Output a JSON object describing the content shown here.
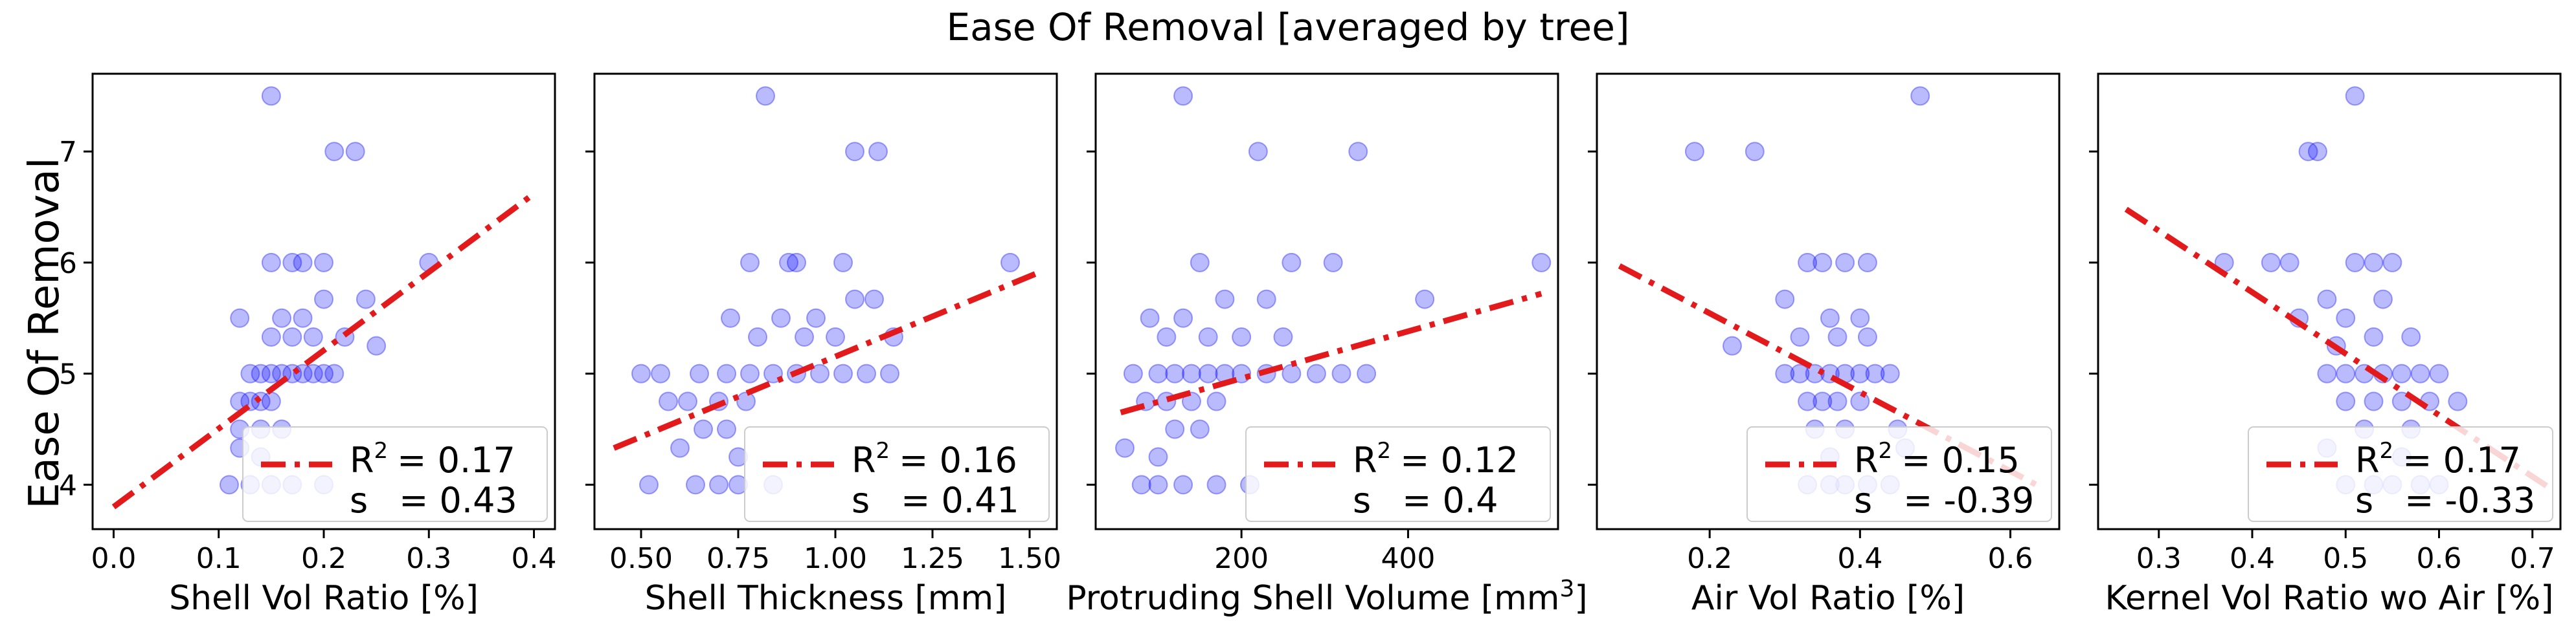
{
  "figure": {
    "suptitle": "Ease Of Removal [averaged by tree]",
    "ylabel": "Ease Of Removal",
    "colors": {
      "points": "#0000ff",
      "fit": "#e31a1c",
      "frame": "#000000"
    }
  },
  "chart_data": [
    {
      "type": "scatter",
      "xlabel": "Shell Vol Ratio [%]",
      "xlim": [
        -0.02,
        0.42
      ],
      "ylim": [
        3.6,
        7.7
      ],
      "xticks": [
        0.0,
        0.1,
        0.2,
        0.3,
        0.4
      ],
      "xtick_labels": [
        "0.0",
        "0.1",
        "0.2",
        "0.3",
        "0.4"
      ],
      "yticks": [
        4,
        5,
        6,
        7
      ],
      "ytick_labels": [
        "4",
        "5",
        "6",
        "7"
      ],
      "fit_line": {
        "x": [
          0.0,
          0.4
        ],
        "y": [
          3.8,
          6.62
        ]
      },
      "legend": {
        "placement": "lower-right",
        "r2_label": "R",
        "r2_value": "= 0.17",
        "s_label": "s",
        "s_value": "= 0.43"
      },
      "points": [
        [
          0.15,
          7.5
        ],
        [
          0.21,
          7.0
        ],
        [
          0.23,
          7.0
        ],
        [
          0.15,
          6.0
        ],
        [
          0.17,
          6.0
        ],
        [
          0.18,
          6.0
        ],
        [
          0.2,
          6.0
        ],
        [
          0.3,
          6.0
        ],
        [
          0.16,
          5.5
        ],
        [
          0.18,
          5.5
        ],
        [
          0.2,
          5.67
        ],
        [
          0.24,
          5.67
        ],
        [
          0.12,
          5.5
        ],
        [
          0.15,
          5.33
        ],
        [
          0.17,
          5.33
        ],
        [
          0.19,
          5.33
        ],
        [
          0.22,
          5.33
        ],
        [
          0.25,
          5.25
        ],
        [
          0.13,
          5.0
        ],
        [
          0.14,
          5.0
        ],
        [
          0.15,
          5.0
        ],
        [
          0.16,
          5.0
        ],
        [
          0.17,
          5.0
        ],
        [
          0.18,
          5.0
        ],
        [
          0.19,
          5.0
        ],
        [
          0.2,
          5.0
        ],
        [
          0.21,
          5.0
        ],
        [
          0.12,
          4.75
        ],
        [
          0.13,
          4.75
        ],
        [
          0.14,
          4.75
        ],
        [
          0.15,
          4.75
        ],
        [
          0.12,
          4.5
        ],
        [
          0.14,
          4.5
        ],
        [
          0.16,
          4.5
        ],
        [
          0.12,
          4.33
        ],
        [
          0.14,
          4.25
        ],
        [
          0.11,
          4.0
        ],
        [
          0.13,
          4.0
        ],
        [
          0.15,
          4.0
        ],
        [
          0.17,
          4.0
        ],
        [
          0.2,
          4.0
        ]
      ]
    },
    {
      "type": "scatter",
      "xlabel": "Shell Thickness [mm]",
      "xlim": [
        0.38,
        1.57
      ],
      "ylim": [
        3.6,
        7.7
      ],
      "xticks": [
        0.5,
        0.75,
        1.0,
        1.25,
        1.5
      ],
      "xtick_labels": [
        "0.50",
        "0.75",
        "1.00",
        "1.25",
        "1.50"
      ],
      "yticks": [
        4,
        5,
        6,
        7
      ],
      "ytick_labels": [
        "4",
        "5",
        "6",
        "7"
      ],
      "fit_line": {
        "x": [
          0.43,
          1.53
        ],
        "y": [
          4.33,
          5.92
        ]
      },
      "legend": {
        "placement": "lower-right",
        "r2_label": "R",
        "r2_value": "= 0.16",
        "s_label": "s",
        "s_value": "= 0.41"
      },
      "points": [
        [
          0.82,
          7.5
        ],
        [
          1.05,
          7.0
        ],
        [
          1.11,
          7.0
        ],
        [
          0.78,
          6.0
        ],
        [
          0.88,
          6.0
        ],
        [
          0.9,
          6.0
        ],
        [
          1.02,
          6.0
        ],
        [
          1.45,
          6.0
        ],
        [
          0.73,
          5.5
        ],
        [
          0.86,
          5.5
        ],
        [
          0.95,
          5.5
        ],
        [
          1.05,
          5.67
        ],
        [
          1.1,
          5.67
        ],
        [
          0.8,
          5.33
        ],
        [
          0.92,
          5.33
        ],
        [
          1.0,
          5.33
        ],
        [
          1.15,
          5.33
        ],
        [
          0.5,
          5.0
        ],
        [
          0.55,
          5.0
        ],
        [
          0.65,
          5.0
        ],
        [
          0.72,
          5.0
        ],
        [
          0.78,
          5.0
        ],
        [
          0.84,
          5.0
        ],
        [
          0.9,
          5.0
        ],
        [
          0.96,
          5.0
        ],
        [
          1.02,
          5.0
        ],
        [
          1.08,
          5.0
        ],
        [
          1.14,
          5.0
        ],
        [
          0.57,
          4.75
        ],
        [
          0.62,
          4.75
        ],
        [
          0.7,
          4.75
        ],
        [
          0.77,
          4.75
        ],
        [
          0.66,
          4.5
        ],
        [
          0.72,
          4.5
        ],
        [
          0.6,
          4.33
        ],
        [
          0.75,
          4.25
        ],
        [
          0.52,
          4.0
        ],
        [
          0.64,
          4.0
        ],
        [
          0.7,
          4.0
        ],
        [
          0.75,
          4.0
        ],
        [
          0.84,
          4.0
        ]
      ]
    },
    {
      "type": "scatter",
      "xlabel": "Protruding Shell Volume [mm",
      "xlabel_sup": "3",
      "xlabel_end": "]",
      "xlim": [
        25,
        580
      ],
      "ylim": [
        3.6,
        7.7
      ],
      "xticks": [
        200,
        400
      ],
      "xtick_labels": [
        "200",
        "400"
      ],
      "yticks": [
        4,
        5,
        6,
        7
      ],
      "ytick_labels": [
        "4",
        "5",
        "6",
        "7"
      ],
      "fit_line": {
        "x": [
          55,
          560
        ],
        "y": [
          4.65,
          5.72
        ]
      },
      "legend": {
        "placement": "lower-right",
        "r2_label": "R",
        "r2_value": "= 0.12",
        "s_label": "s",
        "s_value": "= 0.4"
      },
      "points": [
        [
          130,
          7.5
        ],
        [
          220,
          7.0
        ],
        [
          340,
          7.0
        ],
        [
          150,
          6.0
        ],
        [
          260,
          6.0
        ],
        [
          310,
          6.0
        ],
        [
          560,
          6.0
        ],
        [
          90,
          5.5
        ],
        [
          130,
          5.5
        ],
        [
          180,
          5.67
        ],
        [
          230,
          5.67
        ],
        [
          420,
          5.67
        ],
        [
          110,
          5.33
        ],
        [
          160,
          5.33
        ],
        [
          200,
          5.33
        ],
        [
          250,
          5.33
        ],
        [
          70,
          5.0
        ],
        [
          100,
          5.0
        ],
        [
          120,
          5.0
        ],
        [
          140,
          5.0
        ],
        [
          160,
          5.0
        ],
        [
          180,
          5.0
        ],
        [
          200,
          5.0
        ],
        [
          230,
          5.0
        ],
        [
          260,
          5.0
        ],
        [
          290,
          5.0
        ],
        [
          320,
          5.0
        ],
        [
          350,
          5.0
        ],
        [
          85,
          4.75
        ],
        [
          110,
          4.75
        ],
        [
          140,
          4.75
        ],
        [
          170,
          4.75
        ],
        [
          120,
          4.5
        ],
        [
          150,
          4.5
        ],
        [
          60,
          4.33
        ],
        [
          100,
          4.25
        ],
        [
          80,
          4.0
        ],
        [
          100,
          4.0
        ],
        [
          130,
          4.0
        ],
        [
          170,
          4.0
        ],
        [
          210,
          4.0
        ]
      ]
    },
    {
      "type": "scatter",
      "xlabel": "Air Vol Ratio [%]",
      "xlim": [
        0.05,
        0.665
      ],
      "ylim": [
        3.6,
        7.7
      ],
      "xticks": [
        0.2,
        0.4,
        0.6
      ],
      "xtick_labels": [
        "0.2",
        "0.4",
        "0.6"
      ],
      "yticks": [
        4,
        5,
        6,
        7
      ],
      "ytick_labels": [
        "4",
        "5",
        "6",
        "7"
      ],
      "fit_line": {
        "x": [
          0.08,
          0.64
        ],
        "y": [
          5.97,
          3.98
        ]
      },
      "legend": {
        "placement": "lower-right",
        "r2_label": "R",
        "r2_value": "= 0.15",
        "s_label": "s",
        "s_value": "= -0.39"
      },
      "points": [
        [
          0.48,
          7.5
        ],
        [
          0.18,
          7.0
        ],
        [
          0.26,
          7.0
        ],
        [
          0.33,
          6.0
        ],
        [
          0.35,
          6.0
        ],
        [
          0.38,
          6.0
        ],
        [
          0.41,
          6.0
        ],
        [
          0.3,
          5.67
        ],
        [
          0.36,
          5.5
        ],
        [
          0.4,
          5.5
        ],
        [
          0.32,
          5.33
        ],
        [
          0.37,
          5.33
        ],
        [
          0.41,
          5.33
        ],
        [
          0.23,
          5.25
        ],
        [
          0.3,
          5.0
        ],
        [
          0.32,
          5.0
        ],
        [
          0.34,
          5.0
        ],
        [
          0.36,
          5.0
        ],
        [
          0.38,
          5.0
        ],
        [
          0.4,
          5.0
        ],
        [
          0.42,
          5.0
        ],
        [
          0.44,
          5.0
        ],
        [
          0.33,
          4.75
        ],
        [
          0.35,
          4.75
        ],
        [
          0.37,
          4.75
        ],
        [
          0.4,
          4.75
        ],
        [
          0.34,
          4.5
        ],
        [
          0.38,
          4.5
        ],
        [
          0.45,
          4.5
        ],
        [
          0.46,
          4.33
        ],
        [
          0.36,
          4.25
        ],
        [
          0.33,
          4.0
        ],
        [
          0.36,
          4.0
        ],
        [
          0.38,
          4.0
        ],
        [
          0.41,
          4.0
        ],
        [
          0.44,
          4.0
        ]
      ]
    },
    {
      "type": "scatter",
      "xlabel": "Kernel Vol Ratio wo Air [%]",
      "xlim": [
        0.235,
        0.73
      ],
      "ylim": [
        3.6,
        7.7
      ],
      "xticks": [
        0.3,
        0.4,
        0.5,
        0.6,
        0.7
      ],
      "xtick_labels": [
        "0.3",
        "0.4",
        "0.5",
        "0.6",
        "0.7"
      ],
      "yticks": [
        4,
        5,
        6,
        7
      ],
      "ytick_labels": [
        "4",
        "5",
        "6",
        "7"
      ],
      "fit_line": {
        "x": [
          0.265,
          0.715
        ],
        "y": [
          6.48,
          3.99
        ]
      },
      "legend": {
        "placement": "lower-right",
        "r2_label": "R",
        "r2_value": "= 0.17",
        "s_label": "s",
        "s_value": "= -0.33"
      },
      "points": [
        [
          0.51,
          7.5
        ],
        [
          0.46,
          7.0
        ],
        [
          0.47,
          7.0
        ],
        [
          0.37,
          6.0
        ],
        [
          0.42,
          6.0
        ],
        [
          0.44,
          6.0
        ],
        [
          0.51,
          6.0
        ],
        [
          0.53,
          6.0
        ],
        [
          0.55,
          6.0
        ],
        [
          0.48,
          5.67
        ],
        [
          0.54,
          5.67
        ],
        [
          0.45,
          5.5
        ],
        [
          0.5,
          5.5
        ],
        [
          0.53,
          5.33
        ],
        [
          0.57,
          5.33
        ],
        [
          0.49,
          5.25
        ],
        [
          0.48,
          5.0
        ],
        [
          0.5,
          5.0
        ],
        [
          0.52,
          5.0
        ],
        [
          0.54,
          5.0
        ],
        [
          0.56,
          5.0
        ],
        [
          0.58,
          5.0
        ],
        [
          0.6,
          5.0
        ],
        [
          0.5,
          4.75
        ],
        [
          0.53,
          4.75
        ],
        [
          0.56,
          4.75
        ],
        [
          0.59,
          4.75
        ],
        [
          0.62,
          4.75
        ],
        [
          0.52,
          4.5
        ],
        [
          0.57,
          4.5
        ],
        [
          0.48,
          4.33
        ],
        [
          0.56,
          4.25
        ],
        [
          0.5,
          4.0
        ],
        [
          0.53,
          4.0
        ],
        [
          0.55,
          4.0
        ],
        [
          0.58,
          4.0
        ],
        [
          0.6,
          4.0
        ]
      ]
    }
  ]
}
